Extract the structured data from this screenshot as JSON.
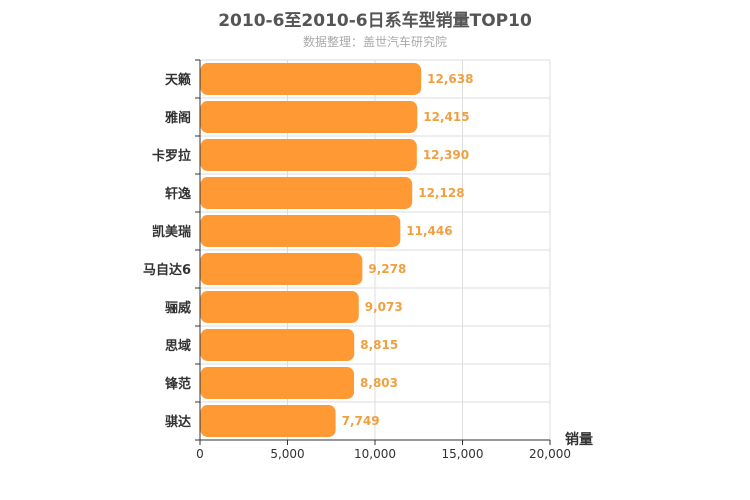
{
  "chart_data": {
    "type": "bar",
    "orientation": "horizontal",
    "title": "2010-6至2010-6日系车型销量TOP10",
    "subtitle": "数据整理：盖世汽车研究院",
    "categories": [
      "天籁",
      "雅阁",
      "卡罗拉",
      "轩逸",
      "凯美瑞",
      "马自达6",
      "骊威",
      "思域",
      "锋范",
      "骐达"
    ],
    "values": [
      12638,
      12415,
      12390,
      12128,
      11446,
      9278,
      9073,
      8815,
      8803,
      7749
    ],
    "value_labels": [
      "12,638",
      "12,415",
      "12,390",
      "12,128",
      "11,446",
      "9,278",
      "9,073",
      "8,815",
      "8,803",
      "7,749"
    ],
    "xlabel": "销量",
    "ylabel": "",
    "xlim": [
      0,
      20000
    ],
    "xticks": [
      0,
      5000,
      10000,
      15000,
      20000
    ],
    "xtick_labels": [
      "0",
      "5,000",
      "10,000",
      "15,000",
      "20,000"
    ],
    "grid": true,
    "colors": {
      "bar": "#ff9933",
      "value_label": "#f0a040",
      "grid": "#dddddd",
      "axis": "#333333"
    }
  }
}
